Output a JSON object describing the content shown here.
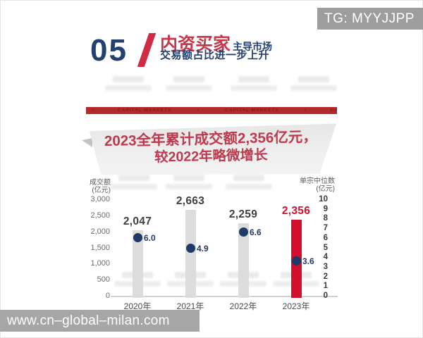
{
  "overlays": {
    "tg_badge": "TG: MYYJJPP",
    "site_watermark": "www.cn–global–milan.com"
  },
  "header": {
    "number": "05",
    "title_red": "内资买家",
    "title_suffix": "主导市场",
    "subtitle": "交易额占比进一步上升"
  },
  "ribbon": {
    "text": "   /            CAPITAL MARKETS             /             CAPITAL MARKETS             /            CAPITA"
  },
  "banner": {
    "line1": "2023全年累计成交额2,356亿元，",
    "line2": "较2022年略微增长"
  },
  "chart_data": {
    "type": "bar",
    "title": "",
    "categories": [
      "2020年",
      "2021年",
      "2022年",
      "2023年"
    ],
    "series": [
      {
        "name": "成交额（亿元）",
        "type": "bar",
        "axis": "left",
        "values": [
          2047,
          2663,
          2259,
          2356
        ],
        "labels": [
          "2,047",
          "2,663",
          "2,259",
          "2,356"
        ]
      },
      {
        "name": "单宗中位数（亿元）",
        "type": "scatter",
        "axis": "right",
        "values": [
          6.0,
          4.9,
          6.6,
          3.6
        ],
        "labels": [
          "6.0",
          "4.9",
          "6.6",
          "3.6"
        ]
      }
    ],
    "left_axis": {
      "title_line1": "成交额",
      "title_line2": "(亿元)",
      "ticks": [
        "3,000",
        "2,500",
        "2,000",
        "1,500",
        "1,000",
        "500",
        "0"
      ],
      "min": 0,
      "max": 3000
    },
    "right_axis": {
      "title_line1": "单宗中位数",
      "title_line2": "(亿元)",
      "ticks": [
        "10",
        "9",
        "8",
        "7",
        "6",
        "5",
        "4",
        "3",
        "2",
        "1",
        "0"
      ],
      "min": 0,
      "max": 10
    },
    "highlight_index": 3,
    "grid": false,
    "legend": false,
    "colors": {
      "bar_default": "#dcdcdc",
      "bar_highlight": "#d40f2e",
      "dot": "#1f3968",
      "value_label": "#3f3f3f",
      "value_label_highlight": "#d40f2e"
    }
  }
}
